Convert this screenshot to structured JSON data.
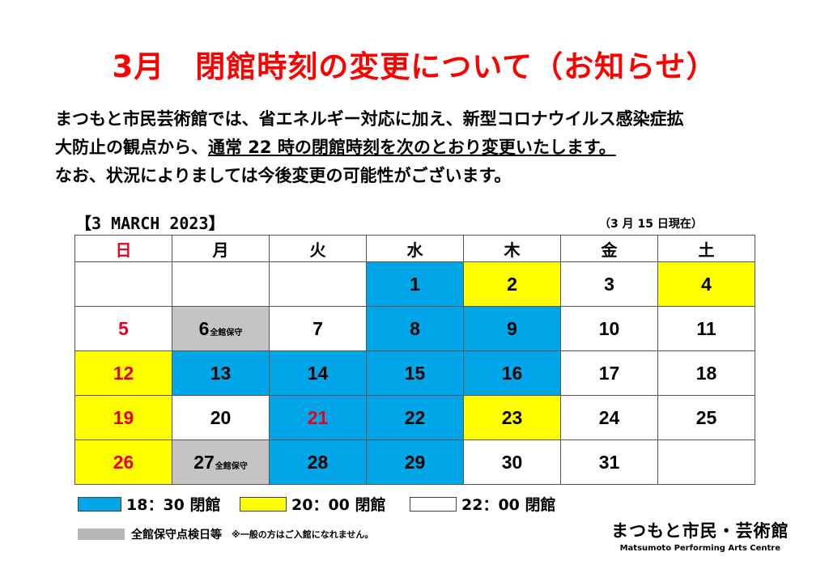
{
  "title": "3月　閉館時刻の変更について（お知らせ）",
  "body": {
    "line1": "まつもと市民芸術館では、省エネルギー対応に加え、新型コロナウイルス感染症拡",
    "line2_prefix": "大防止の観点から、",
    "line2_underlined": "通常 22 時の閉館時刻を次のとおり変更いたします。",
    "line3": "なお、状況によりましては今後変更の可能性がございます。"
  },
  "calendar": {
    "header": "【3 MARCH 2023】",
    "as_of": "（3 月 15 日現在）",
    "weekdays": [
      "日",
      "月",
      "火",
      "水",
      "木",
      "金",
      "土"
    ],
    "weeks": [
      [
        {
          "day": "",
          "type": "none"
        },
        {
          "day": "",
          "type": "none"
        },
        {
          "day": "",
          "type": "none"
        },
        {
          "day": "1",
          "type": "blue"
        },
        {
          "day": "2",
          "type": "yellow"
        },
        {
          "day": "3",
          "type": "none"
        },
        {
          "day": "4",
          "type": "yellow"
        }
      ],
      [
        {
          "day": "5",
          "type": "none",
          "red": true
        },
        {
          "day": "6",
          "type": "gray",
          "note": "全館保守"
        },
        {
          "day": "7",
          "type": "none"
        },
        {
          "day": "8",
          "type": "blue"
        },
        {
          "day": "9",
          "type": "blue"
        },
        {
          "day": "10",
          "type": "none"
        },
        {
          "day": "11",
          "type": "none"
        }
      ],
      [
        {
          "day": "12",
          "type": "yellow",
          "red": true
        },
        {
          "day": "13",
          "type": "blue"
        },
        {
          "day": "14",
          "type": "blue"
        },
        {
          "day": "15",
          "type": "blue"
        },
        {
          "day": "16",
          "type": "blue"
        },
        {
          "day": "17",
          "type": "none"
        },
        {
          "day": "18",
          "type": "none"
        }
      ],
      [
        {
          "day": "19",
          "type": "yellow",
          "red": true
        },
        {
          "day": "20",
          "type": "none"
        },
        {
          "day": "21",
          "type": "blue",
          "red": true
        },
        {
          "day": "22",
          "type": "blue"
        },
        {
          "day": "23",
          "type": "yellow"
        },
        {
          "day": "24",
          "type": "none"
        },
        {
          "day": "25",
          "type": "none"
        }
      ],
      [
        {
          "day": "26",
          "type": "yellow",
          "red": true
        },
        {
          "day": "27",
          "type": "gray",
          "note": "全館保守"
        },
        {
          "day": "28",
          "type": "blue"
        },
        {
          "day": "29",
          "type": "blue"
        },
        {
          "day": "30",
          "type": "none"
        },
        {
          "day": "31",
          "type": "none"
        },
        {
          "day": "",
          "type": "none"
        }
      ]
    ]
  },
  "legend": {
    "blue": "18：30 閉館",
    "yellow": "20：00 閉館",
    "white": "22：00 閉館",
    "gray": "全館保守点検日等",
    "gray_remark": "※一般の方はご入館になれません。"
  },
  "logo": {
    "jp": "まつもと市民・芸術館",
    "en": "Matsumoto Performing Arts Centre"
  },
  "colors": {
    "title": "#ff0000",
    "blue": "#00a6e8",
    "yellow": "#ffff00",
    "gray": "#c4c4c4",
    "holiday_red": "#e8001c"
  }
}
